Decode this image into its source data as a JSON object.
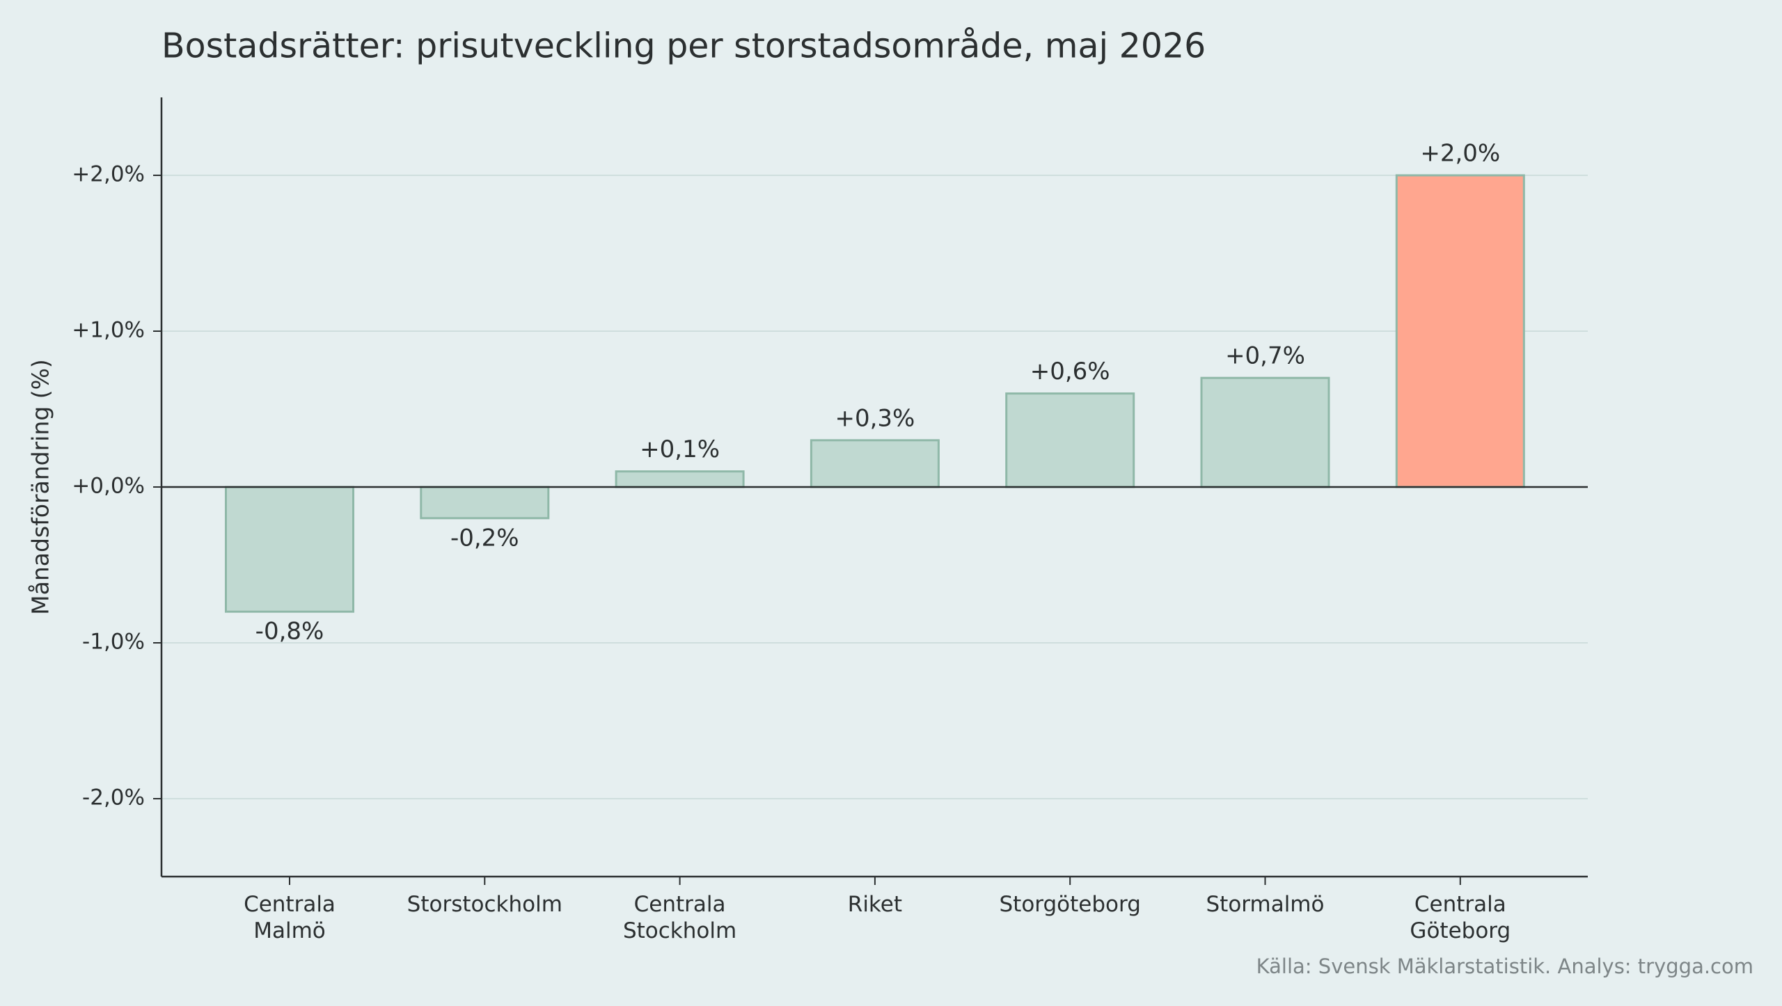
{
  "chart_data": {
    "type": "bar",
    "title": "Bostadsrätter: prisutveckling per storstadsområde, maj 2026",
    "ylabel": "Månadsförändring (%)",
    "source": "Källa: Svensk Mäklarstatistik. Analys: trygga.com",
    "categories": [
      "Centrala Malmö",
      "Storstockholm",
      "Centrala Stockholm",
      "Riket",
      "Storgöteborg",
      "Stormalmö",
      "Centrala Göteborg"
    ],
    "values": [
      -0.8,
      -0.2,
      0.1,
      0.3,
      0.6,
      0.7,
      2.0
    ],
    "value_labels": [
      "-0,8%",
      "-0,2%",
      "+0,1%",
      "+0,3%",
      "+0,6%",
      "+0,7%",
      "+2,0%"
    ],
    "colors": [
      "#c0d9d1",
      "#c0d9d1",
      "#c0d9d1",
      "#c0d9d1",
      "#c0d9d1",
      "#c0d9d1",
      "#ffa68f"
    ],
    "edgecolors": [
      "#8fb8a8",
      "#8fb8a8",
      "#8fb8a8",
      "#8fb8a8",
      "#8fb8a8",
      "#8fb8a8",
      "#8fb8a8"
    ],
    "ylim": [
      -2.5,
      2.5
    ],
    "yticks": [
      {
        "value": -2,
        "label": "-2,0%"
      },
      {
        "value": -1,
        "label": "-1,0%"
      },
      {
        "value": 0,
        "label": "+0,0%"
      },
      {
        "value": 1,
        "label": "+1,0%"
      },
      {
        "value": 2,
        "label": "+2,0%"
      }
    ],
    "grid": true
  }
}
